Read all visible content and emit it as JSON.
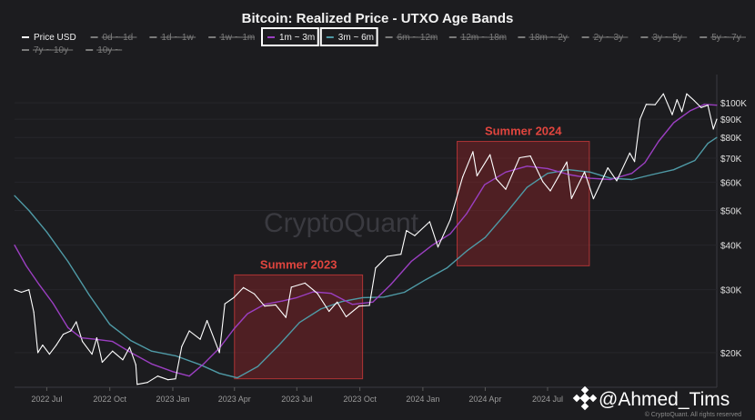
{
  "chart_data": {
    "type": "line",
    "title": "Bitcoin: Realized Price - UTXO Age Bands",
    "y_scale": "log",
    "ylim": [
      16000,
      120000
    ],
    "xlim": [
      "2022-05-15",
      "2025-03-05"
    ],
    "y_ticks": [
      {
        "value": 20000,
        "label": "$20K"
      },
      {
        "value": 30000,
        "label": "$30K"
      },
      {
        "value": 40000,
        "label": "$40K"
      },
      {
        "value": 50000,
        "label": "$50K"
      },
      {
        "value": 60000,
        "label": "$60K"
      },
      {
        "value": 70000,
        "label": "$70K"
      },
      {
        "value": 80000,
        "label": "$80K"
      },
      {
        "value": 90000,
        "label": "$90K"
      },
      {
        "value": 100000,
        "label": "$100K"
      }
    ],
    "x_ticks": [
      {
        "date": "2022-07-01",
        "label": "2022 Jul"
      },
      {
        "date": "2022-10-01",
        "label": "2022 Oct"
      },
      {
        "date": "2023-01-01",
        "label": "2023 Jan"
      },
      {
        "date": "2023-04-01",
        "label": "2023 Apr"
      },
      {
        "date": "2023-07-01",
        "label": "2023 Jul"
      },
      {
        "date": "2023-10-01",
        "label": "2023 Oct"
      },
      {
        "date": "2024-01-01",
        "label": "2024 Jan"
      },
      {
        "date": "2024-04-01",
        "label": "2024 Apr"
      },
      {
        "date": "2024-07-01",
        "label": "2024 Jul"
      }
    ],
    "legend": [
      {
        "name": "Price USD",
        "active": true,
        "color": "#ffffff"
      },
      {
        "name": "0d ~ 1d",
        "active": false,
        "color": "#777777"
      },
      {
        "name": "1d ~ 1w",
        "active": false,
        "color": "#777777"
      },
      {
        "name": "1w ~ 1m",
        "active": false,
        "color": "#777777"
      },
      {
        "name": "1m ~ 3m",
        "active": true,
        "color": "#9b3fc1",
        "highlighted": true
      },
      {
        "name": "3m ~ 6m",
        "active": true,
        "color": "#4f9aa6",
        "highlighted": true
      },
      {
        "name": "6m ~ 12m",
        "active": false,
        "color": "#777777"
      },
      {
        "name": "12m ~ 18m",
        "active": false,
        "color": "#777777"
      },
      {
        "name": "18m ~ 2y",
        "active": false,
        "color": "#777777"
      },
      {
        "name": "2y ~ 3y",
        "active": false,
        "color": "#777777"
      },
      {
        "name": "3y ~ 5y",
        "active": false,
        "color": "#777777"
      },
      {
        "name": "5y ~ 7y",
        "active": false,
        "color": "#777777"
      },
      {
        "name": "7y ~ 10y",
        "active": false,
        "color": "#777777"
      },
      {
        "name": "10y ~",
        "active": false,
        "color": "#777777"
      }
    ],
    "series": [
      {
        "name": "Price USD",
        "color": "#ffffff",
        "points": [
          [
            "2022-05-15",
            30000
          ],
          [
            "2022-05-25",
            29500
          ],
          [
            "2022-06-05",
            30000
          ],
          [
            "2022-06-12",
            26000
          ],
          [
            "2022-06-18",
            20000
          ],
          [
            "2022-06-25",
            21000
          ],
          [
            "2022-07-05",
            19800
          ],
          [
            "2022-07-15",
            21000
          ],
          [
            "2022-07-25",
            22500
          ],
          [
            "2022-08-05",
            23000
          ],
          [
            "2022-08-13",
            24400
          ],
          [
            "2022-08-22",
            21500
          ],
          [
            "2022-09-05",
            19800
          ],
          [
            "2022-09-12",
            22000
          ],
          [
            "2022-09-20",
            18800
          ],
          [
            "2022-10-05",
            20200
          ],
          [
            "2022-10-20",
            19100
          ],
          [
            "2022-10-30",
            20700
          ],
          [
            "2022-11-08",
            18500
          ],
          [
            "2022-11-10",
            16300
          ],
          [
            "2022-11-25",
            16500
          ],
          [
            "2022-12-10",
            17200
          ],
          [
            "2022-12-25",
            16800
          ],
          [
            "2023-01-05",
            16900
          ],
          [
            "2023-01-14",
            20800
          ],
          [
            "2023-01-25",
            23000
          ],
          [
            "2023-02-10",
            21800
          ],
          [
            "2023-02-20",
            24600
          ],
          [
            "2023-03-10",
            20000
          ],
          [
            "2023-03-18",
            27400
          ],
          [
            "2023-03-31",
            28500
          ],
          [
            "2023-04-14",
            30400
          ],
          [
            "2023-04-30",
            29200
          ],
          [
            "2023-05-15",
            27000
          ],
          [
            "2023-05-31",
            27200
          ],
          [
            "2023-06-15",
            25100
          ],
          [
            "2023-06-23",
            30500
          ],
          [
            "2023-07-13",
            31300
          ],
          [
            "2023-07-31",
            29300
          ],
          [
            "2023-08-17",
            26100
          ],
          [
            "2023-08-29",
            27700
          ],
          [
            "2023-09-11",
            25200
          ],
          [
            "2023-09-30",
            27000
          ],
          [
            "2023-10-15",
            27100
          ],
          [
            "2023-10-24",
            34500
          ],
          [
            "2023-11-10",
            37200
          ],
          [
            "2023-11-30",
            37700
          ],
          [
            "2023-12-08",
            43900
          ],
          [
            "2023-12-20",
            42500
          ],
          [
            "2024-01-11",
            46500
          ],
          [
            "2024-01-23",
            39500
          ],
          [
            "2024-02-10",
            47100
          ],
          [
            "2024-02-28",
            62000
          ],
          [
            "2024-03-14",
            73000
          ],
          [
            "2024-03-20",
            62500
          ],
          [
            "2024-04-08",
            71600
          ],
          [
            "2024-04-17",
            61300
          ],
          [
            "2024-05-01",
            57300
          ],
          [
            "2024-05-21",
            70200
          ],
          [
            "2024-06-06",
            71000
          ],
          [
            "2024-06-24",
            60200
          ],
          [
            "2024-07-05",
            56700
          ],
          [
            "2024-07-29",
            68300
          ],
          [
            "2024-08-05",
            54000
          ],
          [
            "2024-08-24",
            64100
          ],
          [
            "2024-09-06",
            53900
          ],
          [
            "2024-09-27",
            65800
          ],
          [
            "2024-10-10",
            60500
          ],
          [
            "2024-10-29",
            72400
          ],
          [
            "2024-11-05",
            68500
          ],
          [
            "2024-11-13",
            90000
          ],
          [
            "2024-11-22",
            99000
          ],
          [
            "2024-12-05",
            98800
          ],
          [
            "2024-12-17",
            106000
          ],
          [
            "2024-12-30",
            92700
          ],
          [
            "2025-01-06",
            102000
          ],
          [
            "2025-01-13",
            94500
          ],
          [
            "2025-01-20",
            106000
          ],
          [
            "2025-01-31",
            101500
          ],
          [
            "2025-02-10",
            97000
          ],
          [
            "2025-02-20",
            98500
          ],
          [
            "2025-02-28",
            84500
          ],
          [
            "2025-03-05",
            90000
          ]
        ]
      },
      {
        "name": "1m ~ 3m",
        "color": "#9b3fc1",
        "points": [
          [
            "2022-05-15",
            40000
          ],
          [
            "2022-06-01",
            35000
          ],
          [
            "2022-06-20",
            31000
          ],
          [
            "2022-07-10",
            27500
          ],
          [
            "2022-08-01",
            23500
          ],
          [
            "2022-08-20",
            22000
          ],
          [
            "2022-09-10",
            21800
          ],
          [
            "2022-10-05",
            21500
          ],
          [
            "2022-11-01",
            20000
          ],
          [
            "2022-12-01",
            18600
          ],
          [
            "2023-01-01",
            17700
          ],
          [
            "2023-01-25",
            17200
          ],
          [
            "2023-02-15",
            18600
          ],
          [
            "2023-03-10",
            20600
          ],
          [
            "2023-04-01",
            23400
          ],
          [
            "2023-04-20",
            25700
          ],
          [
            "2023-05-15",
            27300
          ],
          [
            "2023-06-10",
            27900
          ],
          [
            "2023-07-01",
            28500
          ],
          [
            "2023-07-25",
            29600
          ],
          [
            "2023-08-20",
            29300
          ],
          [
            "2023-09-20",
            27300
          ],
          [
            "2023-10-20",
            27700
          ],
          [
            "2023-11-15",
            31000
          ],
          [
            "2023-12-15",
            36000
          ],
          [
            "2024-01-15",
            40000
          ],
          [
            "2024-02-10",
            43000
          ],
          [
            "2024-03-05",
            49000
          ],
          [
            "2024-03-31",
            59000
          ],
          [
            "2024-05-01",
            64000
          ],
          [
            "2024-06-01",
            66500
          ],
          [
            "2024-07-01",
            65500
          ],
          [
            "2024-08-01",
            63000
          ],
          [
            "2024-09-01",
            61500
          ],
          [
            "2024-10-01",
            61000
          ],
          [
            "2024-11-01",
            63500
          ],
          [
            "2024-11-20",
            68000
          ],
          [
            "2024-12-10",
            78000
          ],
          [
            "2025-01-01",
            88000
          ],
          [
            "2025-01-25",
            95000
          ],
          [
            "2025-02-15",
            99000
          ],
          [
            "2025-03-05",
            98500
          ]
        ]
      },
      {
        "name": "3m ~ 6m",
        "color": "#4f9aa6",
        "points": [
          [
            "2022-05-15",
            55000
          ],
          [
            "2022-06-05",
            50000
          ],
          [
            "2022-07-01",
            43500
          ],
          [
            "2022-08-01",
            36000
          ],
          [
            "2022-09-01",
            29000
          ],
          [
            "2022-10-01",
            24000
          ],
          [
            "2022-11-01",
            21600
          ],
          [
            "2022-12-01",
            20200
          ],
          [
            "2023-01-05",
            19600
          ],
          [
            "2023-02-10",
            18500
          ],
          [
            "2023-03-10",
            17500
          ],
          [
            "2023-04-05",
            17000
          ],
          [
            "2023-05-05",
            18300
          ],
          [
            "2023-06-05",
            21000
          ],
          [
            "2023-07-05",
            24300
          ],
          [
            "2023-08-05",
            26500
          ],
          [
            "2023-09-05",
            27800
          ],
          [
            "2023-10-05",
            28500
          ],
          [
            "2023-11-05",
            28600
          ],
          [
            "2023-12-05",
            29500
          ],
          [
            "2024-01-05",
            32000
          ],
          [
            "2024-02-05",
            34500
          ],
          [
            "2024-03-05",
            38500
          ],
          [
            "2024-04-01",
            42000
          ],
          [
            "2024-05-01",
            49000
          ],
          [
            "2024-06-01",
            58000
          ],
          [
            "2024-07-01",
            63500
          ],
          [
            "2024-08-01",
            65000
          ],
          [
            "2024-09-01",
            64000
          ],
          [
            "2024-10-01",
            61500
          ],
          [
            "2024-11-01",
            61000
          ],
          [
            "2024-12-01",
            63000
          ],
          [
            "2025-01-01",
            65000
          ],
          [
            "2025-02-01",
            69000
          ],
          [
            "2025-02-20",
            77000
          ],
          [
            "2025-03-05",
            80000
          ]
        ]
      }
    ],
    "annotations": [
      {
        "label": "Summer 2023",
        "start": "2023-04-01",
        "end": "2023-10-05",
        "low": 16900,
        "high": 33000,
        "color": "#e0453e"
      },
      {
        "label": "Summer 2024",
        "start": "2024-02-20",
        "end": "2024-08-31",
        "low": 35000,
        "high": 78000,
        "color": "#e0453e"
      }
    ],
    "watermark": "CryptoQuant",
    "credit": "@Ahmed_Tims",
    "copyright": "© CryptoQuant. All rights reserved"
  }
}
